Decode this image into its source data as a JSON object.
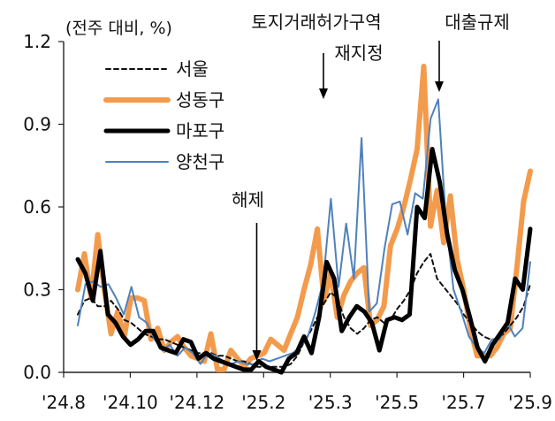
{
  "chart_data": {
    "type": "line",
    "unit_label": "(전주 대비, %)",
    "ylim": [
      0.0,
      1.2
    ],
    "yticks": [
      "0.0",
      "0.3",
      "0.6",
      "0.9",
      "1.2"
    ],
    "xticks": [
      "'24.8",
      "'24.10",
      "'24.12",
      "'25.2",
      "'25.3",
      "'25.5",
      "'25.7",
      "'25.9"
    ],
    "series": [
      {
        "name": "서울",
        "color": "#111111",
        "style": "dashed",
        "values": [
          0.21,
          0.26,
          0.27,
          0.24,
          0.24,
          0.26,
          0.23,
          0.19,
          0.18,
          0.16,
          0.14,
          0.13,
          0.12,
          0.12,
          0.11,
          0.1,
          0.09,
          0.08,
          0.07,
          0.07,
          0.07,
          0.06,
          0.06,
          0.05,
          0.04,
          0.04,
          0.03,
          0.02,
          0.02,
          0.02,
          0.02,
          0.02,
          0.03,
          0.06,
          0.11,
          0.15,
          0.2,
          0.25,
          0.29,
          0.27,
          0.2,
          0.16,
          0.14,
          0.16,
          0.19,
          0.2,
          0.18,
          0.19,
          0.23,
          0.26,
          0.3,
          0.36,
          0.4,
          0.43,
          0.34,
          0.31,
          0.28,
          0.25,
          0.21,
          0.18,
          0.15,
          0.13,
          0.12,
          0.12,
          0.14,
          0.17,
          0.2,
          0.24,
          0.32
        ]
      },
      {
        "name": "성동구",
        "color": "#F39B4C",
        "style": "solid",
        "values": [
          0.3,
          0.43,
          0.27,
          0.5,
          0.3,
          0.14,
          0.22,
          0.13,
          0.27,
          0.27,
          0.26,
          0.12,
          0.16,
          0.08,
          0.11,
          0.13,
          0.09,
          0.06,
          0.05,
          0.04,
          0.14,
          0.01,
          0.01,
          0.08,
          0.05,
          0.02,
          0.05,
          0.06,
          0.07,
          0.12,
          0.1,
          0.08,
          0.14,
          0.2,
          0.3,
          0.39,
          0.52,
          0.26,
          0.36,
          0.2,
          0.28,
          0.33,
          0.36,
          0.38,
          0.17,
          0.19,
          0.24,
          0.46,
          0.52,
          0.6,
          0.7,
          0.81,
          1.11,
          0.53,
          0.66,
          0.47,
          0.64,
          0.41,
          0.3,
          0.16,
          0.06,
          0.06,
          0.06,
          0.09,
          0.14,
          0.16,
          0.38,
          0.62,
          0.73
        ]
      },
      {
        "name": "마포구",
        "color": "#000000",
        "style": "solid",
        "values": [
          0.41,
          0.36,
          0.26,
          0.44,
          0.21,
          0.18,
          0.13,
          0.1,
          0.12,
          0.15,
          0.15,
          0.09,
          0.08,
          0.07,
          0.12,
          0.11,
          0.05,
          0.07,
          0.05,
          0.04,
          0.03,
          0.02,
          0.01,
          0.01,
          0.04,
          0.02,
          0.01,
          0.0,
          0.05,
          0.07,
          0.13,
          0.07,
          0.2,
          0.4,
          0.34,
          0.15,
          0.2,
          0.24,
          0.22,
          0.18,
          0.08,
          0.19,
          0.2,
          0.19,
          0.21,
          0.6,
          0.56,
          0.81,
          0.69,
          0.5,
          0.37,
          0.3,
          0.2,
          0.09,
          0.04,
          0.1,
          0.14,
          0.18,
          0.34,
          0.3,
          0.52
        ]
      },
      {
        "name": "양천구",
        "color": "#4F81BD",
        "style": "solid",
        "values": [
          0.17,
          0.32,
          0.33,
          0.31,
          0.32,
          0.27,
          0.21,
          0.31,
          0.2,
          0.18,
          0.12,
          0.08,
          0.1,
          0.06,
          0.09,
          0.07,
          0.03,
          0.07,
          0.06,
          0.04,
          0.03,
          0.04,
          0.03,
          0.03,
          0.05,
          0.04,
          0.05,
          0.06,
          0.07,
          0.09,
          0.13,
          0.22,
          0.33,
          0.63,
          0.31,
          0.54,
          0.34,
          0.85,
          0.22,
          0.25,
          0.45,
          0.61,
          0.62,
          0.5,
          0.65,
          0.63,
          0.92,
          0.99,
          0.55,
          0.3,
          0.22,
          0.13,
          0.09,
          0.07,
          0.12,
          0.12,
          0.18,
          0.13,
          0.16,
          0.4
        ]
      }
    ],
    "legend": {
      "position": "top-left"
    },
    "annotations": [
      {
        "text": "해제",
        "x_fraction": 0.41
      },
      {
        "text": "토지거래허가구역",
        "x_fraction": 0.57
      },
      {
        "text": "재지정",
        "x_fraction": 0.57
      },
      {
        "text": "대출규제",
        "x_fraction": 0.82
      }
    ],
    "grid": false
  }
}
